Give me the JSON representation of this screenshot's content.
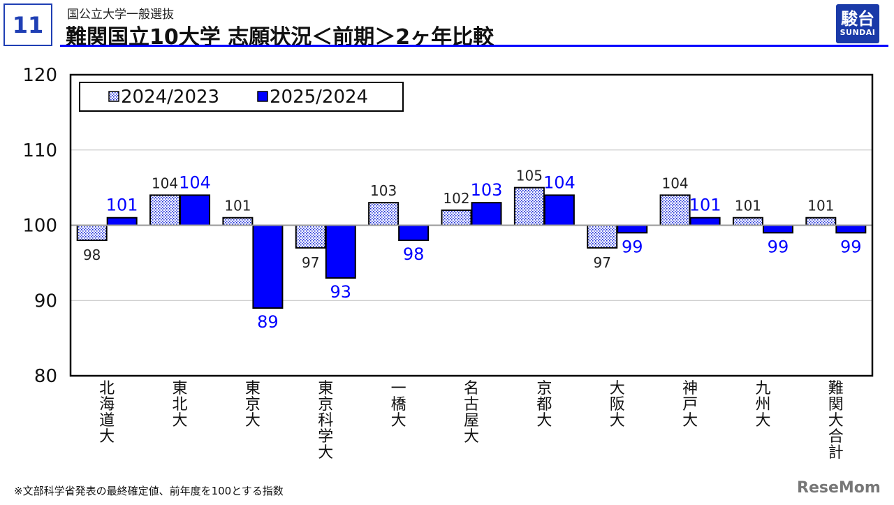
{
  "header": {
    "page_number": "11",
    "subtitle": "国公立大学一般選抜",
    "title": "難関国立10大学 志願状況＜前期＞2ヶ年比較",
    "logo_kanji": "駿台",
    "logo_roman": "SUNDAI"
  },
  "footnote": "※文部科学省発表の最終確定値、前年度を100とする指数",
  "watermark": "ReseMom",
  "colors": {
    "accent_blue": "#0000ff",
    "page_number_blue": "#1f3fb4",
    "logo_blue": "#1a3aa8",
    "dotted_fill": "#1a2bd8"
  },
  "chart_data": {
    "type": "bar",
    "categories": [
      "北海道大",
      "東北大",
      "東京大",
      "東京科学大",
      "一橋大",
      "名古屋大",
      "京都大",
      "大阪大",
      "神戸大",
      "九州大",
      "難関大合計"
    ],
    "series": [
      {
        "name": "2024/2023",
        "values": [
          98,
          104,
          101,
          97,
          103,
          102,
          105,
          97,
          104,
          101,
          101
        ],
        "label_color": "#222222"
      },
      {
        "name": "2025/2024",
        "values": [
          101,
          104,
          89,
          93,
          98,
          103,
          104,
          99,
          101,
          99,
          99
        ],
        "label_color": "#0000ff"
      }
    ],
    "baseline": 100,
    "ylim": [
      80,
      120
    ],
    "yticks": [
      80,
      90,
      100,
      110,
      120
    ],
    "grid": true,
    "legend": "top-left",
    "xlabel": "",
    "ylabel": ""
  }
}
